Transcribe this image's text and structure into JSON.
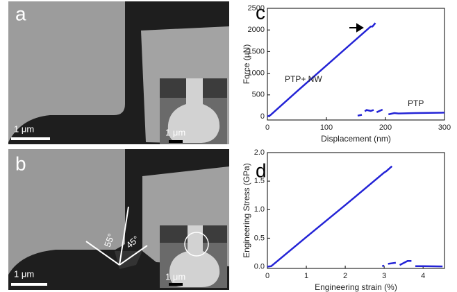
{
  "panels": [
    {
      "label": "a",
      "scale": "1 μm",
      "inset_scale": "1 μm"
    },
    {
      "label": "b",
      "scale": "1 μm",
      "inset_scale": "1 μm",
      "angles": [
        "55°",
        "45°"
      ]
    }
  ],
  "chart_data": [
    {
      "type": "line",
      "panel": "c",
      "xlabel": "Displacement (nm)",
      "ylabel": "Force (μN)",
      "xlim": [
        0,
        300
      ],
      "ylim": [
        -80,
        2500
      ],
      "xticks": [
        0,
        100,
        200,
        300
      ],
      "yticks": [
        0,
        500,
        1000,
        1500,
        2000,
        2500
      ],
      "color": "#2323d6",
      "annotations": [
        "PTP+ NW",
        "PTP"
      ],
      "series": [
        {
          "x": [
            0,
            5,
            50,
            100,
            150,
            175,
            178,
            183
          ],
          "values": [
            0,
            30,
            580,
            1180,
            1780,
            2080,
            2080,
            2160
          ]
        },
        {
          "x": [
            153,
            160,
            null,
            165,
            168,
            175,
            180,
            null,
            185,
            195,
            null,
            205,
            215,
            222,
            250,
            300
          ],
          "values": [
            20,
            40,
            null,
            120,
            150,
            130,
            150,
            null,
            100,
            160,
            null,
            50,
            80,
            70,
            80,
            90
          ]
        }
      ]
    },
    {
      "type": "line",
      "panel": "d",
      "xlabel": "Engineering strain (%)",
      "ylabel": "Engineering Stress (GPa)",
      "xlim": [
        0,
        4.55
      ],
      "ylim": [
        -0.03,
        2.0
      ],
      "xticks": [
        0,
        1,
        2,
        3,
        4
      ],
      "yticks": [
        {
          "value": 0,
          "label": "0.0"
        },
        0.5,
        {
          "value": 1,
          "label": "1.0"
        },
        1.5,
        {
          "value": 2,
          "label": "2.0"
        }
      ],
      "color": "#2323d6",
      "series": [
        {
          "x": [
            0,
            0.1,
            1,
            2,
            3,
            3.05,
            3.2
          ],
          "values": [
            0,
            0.01,
            0.52,
            1.08,
            1.65,
            1.67,
            1.76
          ]
        },
        {
          "x": [
            2.95,
            3.0,
            null,
            3.1,
            3.3,
            null,
            3.4,
            3.6,
            3.7,
            null,
            3.8,
            4.0,
            4.5
          ],
          "values": [
            0.01,
            0.02,
            null,
            0.05,
            0.07,
            null,
            0.03,
            0.1,
            0.1,
            null,
            0.01,
            0.01,
            0.005
          ]
        }
      ]
    }
  ]
}
